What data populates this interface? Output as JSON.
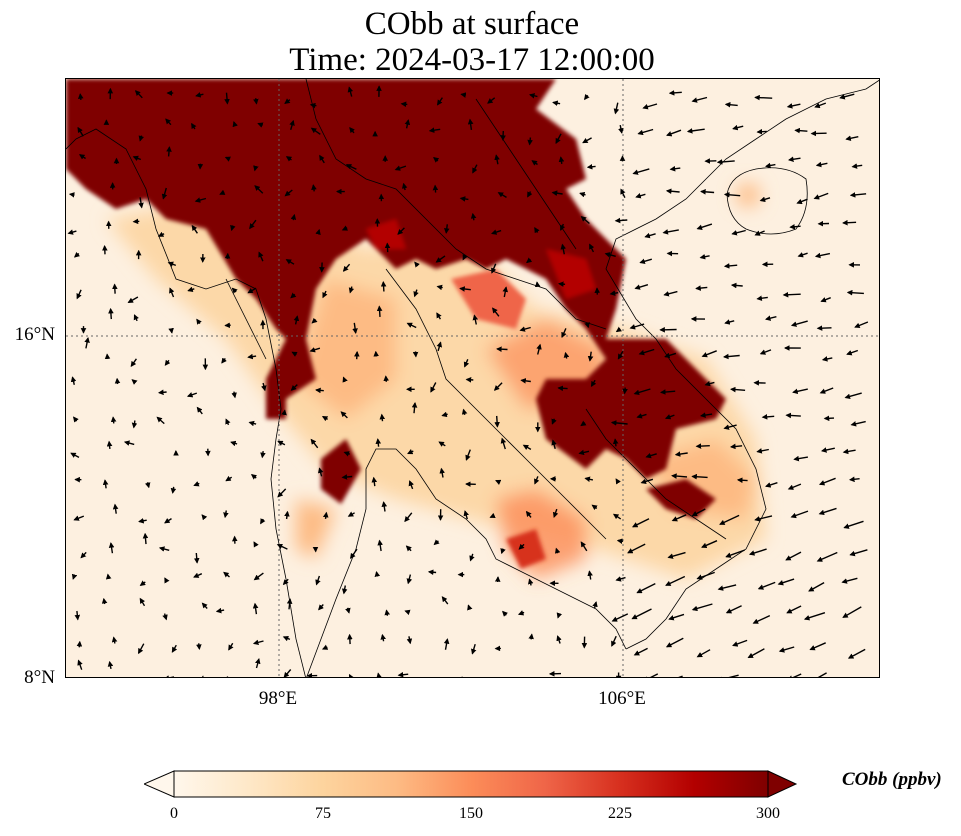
{
  "figure": {
    "title_line1": "CObb at surface",
    "title_line2": "Time: 2024-03-17 12:00:00"
  },
  "map": {
    "projection": "PlateCarree",
    "lon_range": [
      93,
      112
    ],
    "lat_range": [
      8,
      22
    ],
    "lat_ticks": [
      "16°N",
      "8°N"
    ],
    "lon_ticks": [
      "98°E",
      "106°E"
    ],
    "gridlines": "dotted grey at 98°E, 106°E, 16°N",
    "wind_vectors": true,
    "colors": {
      "ocean_background": "#fdf0e0",
      "high_concentration": "#7f0000",
      "coastline": "#000000",
      "vector": "#000000"
    }
  },
  "colorbar": {
    "label": "CObb (ppbv)",
    "ticks": [
      "0",
      "75",
      "150",
      "225",
      "300"
    ],
    "range": [
      0,
      300
    ],
    "extend": "both",
    "colormap": "OrRd",
    "colors": [
      "#fff7ec",
      "#fee8c8",
      "#fdd49e",
      "#fdbb84",
      "#fc8d59",
      "#ef6548",
      "#d7301f",
      "#b30000",
      "#7f0000"
    ]
  }
}
